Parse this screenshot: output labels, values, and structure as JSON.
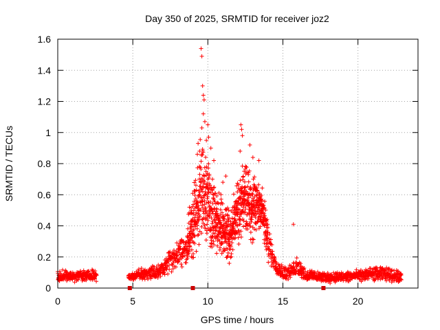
{
  "chart_data": {
    "type": "scatter",
    "title": "Day 350 of 2025, SRMTID for receiver joz2",
    "xlabel": "GPS time / hours",
    "ylabel": "SRMTID / TECUs",
    "xlim": [
      0,
      24
    ],
    "ylim": [
      0,
      1.6
    ],
    "xticks": [
      0,
      5,
      10,
      15,
      20
    ],
    "xtick_labels": [
      "0",
      "5",
      "10",
      "15",
      "20"
    ],
    "yticks": [
      0,
      0.2,
      0.4,
      0.6,
      0.8,
      1,
      1.2,
      1.4,
      1.6
    ],
    "ytick_labels": [
      "0",
      "0.2",
      "0.4",
      "0.6",
      "0.8",
      "1",
      "1.2",
      "1.4",
      "1.6"
    ],
    "grid": true,
    "marker": "plus",
    "series_color": "#ff0000",
    "marker_color": "#cc0000",
    "square_markers_x": [
      4.8,
      9.0,
      17.7
    ],
    "envelope": [
      [
        0.0,
        0.07,
        0.05
      ],
      [
        0.5,
        0.08,
        0.04
      ],
      [
        1.0,
        0.07,
        0.04
      ],
      [
        1.5,
        0.08,
        0.04
      ],
      [
        2.0,
        0.08,
        0.04
      ],
      [
        2.5,
        0.08,
        0.04
      ],
      [
        4.8,
        0.07,
        0.02
      ],
      [
        5.5,
        0.09,
        0.04
      ],
      [
        6.0,
        0.1,
        0.05
      ],
      [
        6.5,
        0.1,
        0.05
      ],
      [
        7.0,
        0.12,
        0.06
      ],
      [
        7.5,
        0.18,
        0.08
      ],
      [
        8.0,
        0.22,
        0.1
      ],
      [
        8.5,
        0.25,
        0.12
      ],
      [
        9.0,
        0.4,
        0.25
      ],
      [
        9.5,
        0.62,
        0.35
      ],
      [
        10.0,
        0.55,
        0.3
      ],
      [
        10.5,
        0.45,
        0.25
      ],
      [
        11.0,
        0.38,
        0.2
      ],
      [
        11.5,
        0.35,
        0.2
      ],
      [
        12.0,
        0.5,
        0.25
      ],
      [
        12.5,
        0.6,
        0.25
      ],
      [
        13.0,
        0.5,
        0.25
      ],
      [
        13.5,
        0.55,
        0.2
      ],
      [
        14.0,
        0.3,
        0.15
      ],
      [
        14.5,
        0.15,
        0.06
      ],
      [
        15.0,
        0.1,
        0.05
      ],
      [
        15.5,
        0.1,
        0.05
      ],
      [
        16.0,
        0.15,
        0.08
      ],
      [
        16.5,
        0.08,
        0.04
      ],
      [
        17.0,
        0.08,
        0.04
      ],
      [
        17.5,
        0.07,
        0.03
      ],
      [
        18.0,
        0.07,
        0.04
      ],
      [
        19.0,
        0.07,
        0.04
      ],
      [
        20.0,
        0.08,
        0.04
      ],
      [
        21.0,
        0.09,
        0.05
      ],
      [
        22.0,
        0.09,
        0.05
      ],
      [
        22.8,
        0.07,
        0.04
      ]
    ],
    "gaps": [
      [
        2.6,
        4.7
      ],
      [
        22.9,
        24
      ]
    ],
    "peaks": [
      [
        9.55,
        1.54
      ],
      [
        9.6,
        1.49
      ],
      [
        9.65,
        1.3
      ],
      [
        9.7,
        1.24
      ],
      [
        9.75,
        1.21
      ],
      [
        9.7,
        1.12
      ],
      [
        9.8,
        1.07
      ],
      [
        9.6,
        1.03
      ],
      [
        10.0,
        1.05
      ],
      [
        10.05,
        0.97
      ],
      [
        9.35,
        0.93
      ],
      [
        9.45,
        0.88
      ],
      [
        9.3,
        0.86
      ],
      [
        9.9,
        0.95
      ],
      [
        12.2,
        1.05
      ],
      [
        12.25,
        1.02
      ],
      [
        12.3,
        0.98
      ],
      [
        12.15,
        0.88
      ],
      [
        12.8,
        0.92
      ],
      [
        13.0,
        0.84
      ],
      [
        13.4,
        0.82
      ],
      [
        15.7,
        0.41
      ],
      [
        10.2,
        0.9
      ],
      [
        10.4,
        0.82
      ],
      [
        11.0,
        0.68
      ],
      [
        11.2,
        0.72
      ]
    ]
  }
}
